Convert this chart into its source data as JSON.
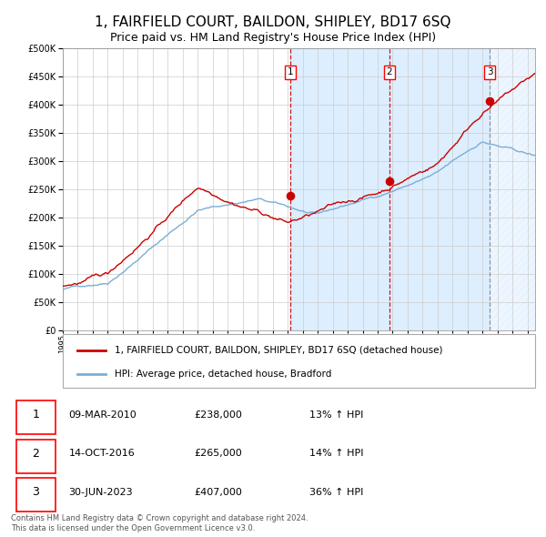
{
  "title": "1, FAIRFIELD COURT, BAILDON, SHIPLEY, BD17 6SQ",
  "subtitle": "Price paid vs. HM Land Registry's House Price Index (HPI)",
  "xlim_start": 1995.0,
  "xlim_end": 2026.5,
  "ylim": [
    0,
    500000
  ],
  "yticks": [
    0,
    50000,
    100000,
    150000,
    200000,
    250000,
    300000,
    350000,
    400000,
    450000,
    500000
  ],
  "sale_dates": [
    2010.19,
    2016.79,
    2023.49
  ],
  "sale_prices": [
    238000,
    265000,
    407000
  ],
  "sale_labels": [
    "1",
    "2",
    "3"
  ],
  "sale_date_strs": [
    "09-MAR-2010",
    "14-OCT-2016",
    "30-JUN-2023"
  ],
  "sale_price_strs": [
    "£238,000",
    "£265,000",
    "£407,000"
  ],
  "sale_pct_strs": [
    "13% ↑ HPI",
    "14% ↑ HPI",
    "36% ↑ HPI"
  ],
  "hpi_color": "#7aaed6",
  "price_color": "#cc0000",
  "shade_color": "#ddeeff",
  "hatch_color": "#aabbcc",
  "background_color": "#ffffff",
  "grid_color": "#cccccc",
  "title_fontsize": 11,
  "subtitle_fontsize": 9,
  "legend_label_price": "1, FAIRFIELD COURT, BAILDON, SHIPLEY, BD17 6SQ (detached house)",
  "legend_label_hpi": "HPI: Average price, detached house, Bradford",
  "footnote": "Contains HM Land Registry data © Crown copyright and database right 2024.\nThis data is licensed under the Open Government Licence v3.0."
}
